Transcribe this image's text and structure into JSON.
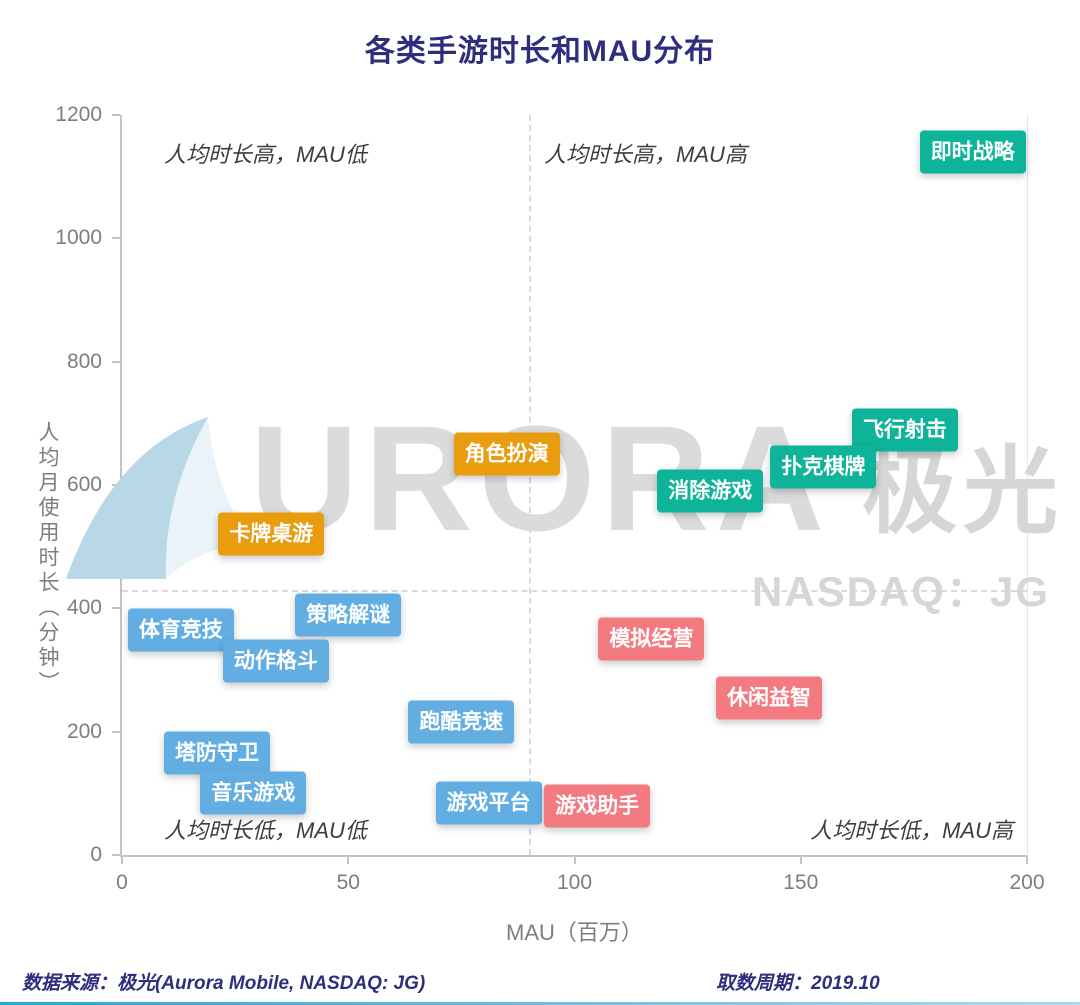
{
  "title": "各类手游时长和MAU分布",
  "watermark": {
    "brand": "URORA",
    "cn": "极光",
    "sub": "NASDAQ：JG"
  },
  "footer": {
    "source": "数据来源：极光(Aurora Mobile, NASDAQ: JG)",
    "period": "取数周期：2019.10"
  },
  "chart_data": {
    "type": "scatter",
    "title": "各类手游时长和MAU分布",
    "xlabel": "MAU（百万）",
    "ylabel": "人均月使用时长（分钟）",
    "xlim": [
      0,
      200
    ],
    "ylim": [
      0,
      1200
    ],
    "xticks": [
      0,
      50,
      100,
      150,
      200
    ],
    "yticks": [
      0,
      200,
      400,
      600,
      800,
      1000,
      1200
    ],
    "grid": "off",
    "quadrant_divider": {
      "x": 90,
      "y": 430
    },
    "quadrant_labels": [
      {
        "text": "人均时长高，MAU低",
        "position": "top-left"
      },
      {
        "text": "人均时长高，MAU高",
        "position": "top-right"
      },
      {
        "text": "人均时长低，MAU低",
        "position": "bottom-left"
      },
      {
        "text": "人均时长低，MAU高",
        "position": "bottom-right"
      }
    ],
    "series_colors": {
      "teal": "#0eb49a",
      "orange": "#e89c0e",
      "blue": "#62aee3",
      "pink": "#f47a82"
    },
    "points": [
      {
        "label": "即时战略",
        "x": 188,
        "y": 1140,
        "color": "teal"
      },
      {
        "label": "飞行射击",
        "x": 173,
        "y": 690,
        "color": "teal"
      },
      {
        "label": "扑克棋牌",
        "x": 155,
        "y": 630,
        "color": "teal"
      },
      {
        "label": "消除游戏",
        "x": 130,
        "y": 590,
        "color": "teal"
      },
      {
        "label": "角色扮演",
        "x": 85,
        "y": 650,
        "color": "orange"
      },
      {
        "label": "卡牌桌游",
        "x": 33,
        "y": 520,
        "color": "orange"
      },
      {
        "label": "策略解谜",
        "x": 50,
        "y": 390,
        "color": "blue"
      },
      {
        "label": "体育竞技",
        "x": 13,
        "y": 365,
        "color": "blue"
      },
      {
        "label": "动作格斗",
        "x": 34,
        "y": 315,
        "color": "blue"
      },
      {
        "label": "跑酷竞速",
        "x": 75,
        "y": 215,
        "color": "blue"
      },
      {
        "label": "塔防守卫",
        "x": 21,
        "y": 165,
        "color": "blue"
      },
      {
        "label": "音乐游戏",
        "x": 29,
        "y": 100,
        "color": "blue"
      },
      {
        "label": "游戏平台",
        "x": 81,
        "y": 85,
        "color": "blue"
      },
      {
        "label": "游戏助手",
        "x": 105,
        "y": 80,
        "color": "pink"
      },
      {
        "label": "模拟经营",
        "x": 117,
        "y": 350,
        "color": "pink"
      },
      {
        "label": "休闲益智",
        "x": 143,
        "y": 255,
        "color": "pink"
      }
    ]
  }
}
